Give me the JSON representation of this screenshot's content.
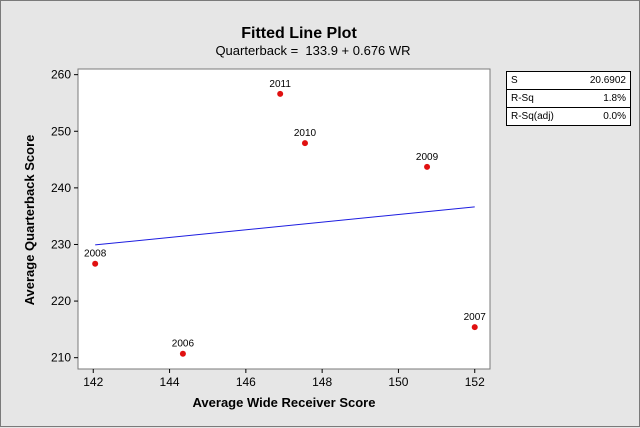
{
  "chart_data": {
    "type": "scatter",
    "title": "Fitted Line Plot",
    "subtitle": "Quarterback =  133.9 + 0.676 WR",
    "xlabel": "Average Wide Receiver Score",
    "ylabel": "Average Quarterback Score",
    "xlim": [
      141.6,
      152.4
    ],
    "ylim": [
      208,
      261
    ],
    "xticks": [
      142,
      144,
      146,
      148,
      150,
      152
    ],
    "yticks": [
      210,
      220,
      230,
      240,
      250,
      260
    ],
    "grid": false,
    "points": [
      {
        "label": "2011",
        "x": 146.9,
        "y": 256.6
      },
      {
        "label": "2010",
        "x": 147.55,
        "y": 247.9
      },
      {
        "label": "2009",
        "x": 150.75,
        "y": 243.7
      },
      {
        "label": "2008",
        "x": 142.05,
        "y": 226.6
      },
      {
        "label": "2006",
        "x": 144.35,
        "y": 210.7
      },
      {
        "label": "2007",
        "x": 152.0,
        "y": 215.4
      }
    ],
    "fit_line": {
      "intercept": 133.9,
      "slope": 0.676,
      "color": "#1c1ce0"
    },
    "point_color": "#e01010"
  },
  "stats": [
    {
      "label": "S",
      "value": "20.6902"
    },
    {
      "label": "R-Sq",
      "value": "1.8%"
    },
    {
      "label": "R-Sq(adj)",
      "value": "0.0%"
    }
  ]
}
